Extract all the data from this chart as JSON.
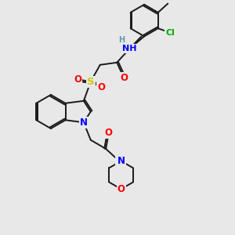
{
  "bg_color": "#e8e8e8",
  "bond_color": "#1a1a1a",
  "bond_width": 1.4,
  "atom_colors": {
    "N": "#0000ff",
    "O": "#ff0000",
    "S": "#cccc00",
    "Cl": "#00aa00",
    "H": "#6699aa",
    "C": "#1a1a1a"
  },
  "font_size": 8.5
}
